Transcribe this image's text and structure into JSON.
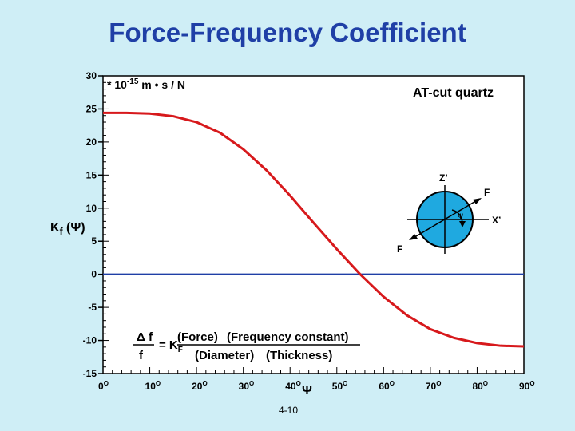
{
  "slide": {
    "title": "Force-Frequency Coefficient",
    "page_number": "4-10"
  },
  "chart_data": {
    "type": "line",
    "ylabel": "Kf (Ψ)",
    "ylabel_main": "K",
    "ylabel_sub": "f",
    "ylabel_rest": " (Ψ)",
    "xlabel": "Ψ",
    "units_prefix": "* 10",
    "units_exp": "-15",
    "units_suffix": " m • s / N",
    "annotation": "AT-cut quartz",
    "ylim": [
      -15,
      30
    ],
    "xlim": [
      0,
      90
    ],
    "yticks": [
      "30",
      "25",
      "20",
      "15",
      "10",
      "5",
      "0",
      "-5",
      "-10",
      "-15"
    ],
    "ytick_values": [
      30,
      25,
      20,
      15,
      10,
      5,
      0,
      -5,
      -10,
      -15
    ],
    "xtick_values": [
      0,
      10,
      20,
      30,
      40,
      50,
      60,
      70,
      80,
      90
    ],
    "xtick_labels": [
      "0",
      "10",
      "20",
      "30",
      "40",
      "50",
      "60",
      "70",
      "80",
      "90"
    ],
    "xtick_suffix": "O",
    "zero_line": 0,
    "series": [
      {
        "color": "#d7191c",
        "x": [
          0,
          5,
          10,
          15,
          20,
          25,
          30,
          35,
          40,
          45,
          50,
          55,
          60,
          65,
          70,
          75,
          80,
          85,
          90
        ],
        "y": [
          24.4,
          24.4,
          24.3,
          23.9,
          23.0,
          21.4,
          18.9,
          15.7,
          11.9,
          7.8,
          3.8,
          0.0,
          -3.4,
          -6.2,
          -8.3,
          -9.6,
          -10.4,
          -10.8,
          -10.9
        ]
      }
    ],
    "equation": {
      "lhs_num": "Δ f",
      "lhs_den": "f",
      "coef": "= K",
      "coef_sub": "F",
      "force": "(Force)",
      "freq_const": "(Frequency constant)",
      "diameter": "(Diameter)",
      "thickness": "(Thickness)"
    },
    "inset": {
      "z_label": "Z’",
      "x_label": "X’",
      "f_top": "F",
      "f_bottom": "F",
      "psi": "Ψ",
      "circle_color": "#1fa9e0"
    }
  }
}
